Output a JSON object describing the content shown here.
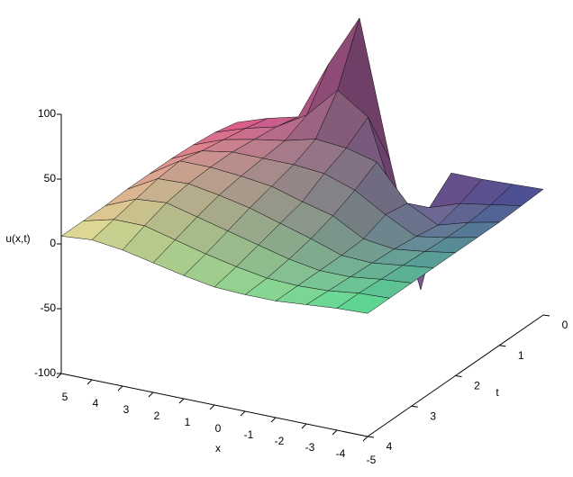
{
  "chart_data": {
    "type": "surface",
    "x_label": "x",
    "y_label": "t",
    "z_label": "u(x,t)",
    "x": [
      5,
      4,
      3,
      2,
      1,
      0,
      -1,
      -2,
      -3,
      -4,
      -5
    ],
    "y": [
      0,
      0.5,
      1,
      1.5,
      2,
      2.5,
      3,
      3.5,
      4
    ],
    "values": [
      [
        0,
        8,
        14,
        60,
        100,
        -5,
        -100,
        -5,
        -5,
        -4,
        -3
      ],
      [
        4,
        12,
        18,
        32,
        56,
        40,
        -30,
        -20,
        -12,
        -8,
        -4
      ],
      [
        6,
        15,
        20,
        24,
        30,
        28,
        22,
        -5,
        -17,
        -10,
        -5
      ],
      [
        7,
        18,
        22,
        22,
        22,
        20,
        12,
        -2,
        -14,
        -10,
        -5
      ],
      [
        7,
        22,
        22,
        20,
        17,
        10,
        4,
        -9,
        -12,
        -9,
        -5
      ],
      [
        7,
        20,
        21,
        17,
        12,
        5,
        -2,
        -10,
        -11,
        -8,
        -5
      ],
      [
        6,
        16,
        18,
        12,
        6,
        0,
        -6,
        -10,
        -10,
        -7,
        -5
      ],
      [
        6,
        12,
        12,
        6,
        0,
        -5,
        -9,
        -10,
        -9,
        -6,
        -5
      ],
      [
        6,
        8,
        5,
        0,
        -5,
        -9,
        -10,
        -10,
        -8,
        -6,
        -5
      ]
    ],
    "xlim": [
      -5,
      5
    ],
    "ylim": [
      0,
      4
    ],
    "zlim": [
      -100,
      100
    ],
    "xticks": [
      5,
      4,
      3,
      2,
      1,
      0,
      -1,
      -2,
      -3,
      -4,
      -5
    ],
    "yticks": [
      0,
      1,
      2,
      3,
      4
    ],
    "zticks": [
      100,
      50,
      0,
      -50,
      -100
    ],
    "colors": [
      "#ea5a8e",
      "#f6f2a0",
      "#60f0a0",
      "#4c4ca2"
    ]
  }
}
